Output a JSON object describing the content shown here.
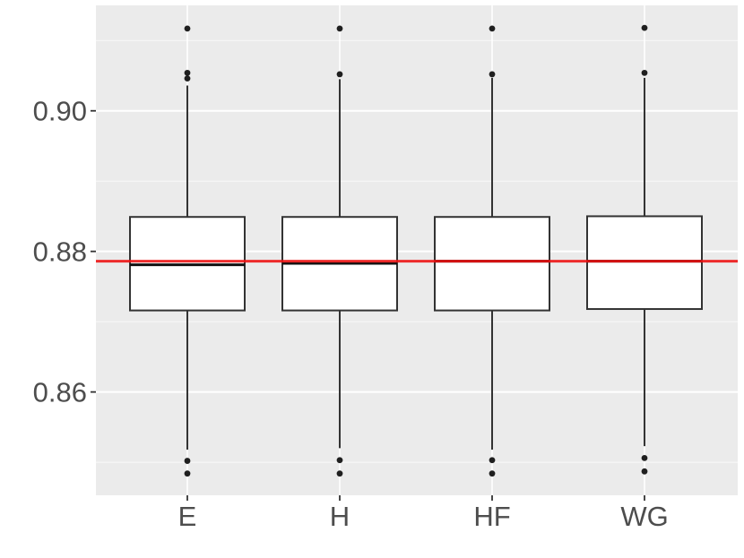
{
  "chart_data": {
    "type": "boxplot",
    "title": "",
    "xlabel": "",
    "ylabel": "",
    "categories": [
      "E",
      "H",
      "HF",
      "WG"
    ],
    "y_axis": {
      "range": [
        0.8453,
        0.915
      ],
      "major_ticks": [
        0.86,
        0.88,
        0.9
      ],
      "major_tick_labels": [
        "0.86",
        "0.88",
        "0.90"
      ],
      "minor_gridlines": [
        0.85,
        0.87,
        0.89,
        0.91
      ]
    },
    "series": [
      {
        "name": "E",
        "q1": 0.8716,
        "median": 0.8781,
        "q3": 0.8849,
        "whisker_low": 0.8518,
        "whisker_high": 0.9036,
        "outliers_high": [
          0.9117,
          0.9054,
          0.9046
        ],
        "outliers_low": [
          0.8502,
          0.8484
        ]
      },
      {
        "name": "H",
        "q1": 0.8716,
        "median": 0.8783,
        "q3": 0.8849,
        "whisker_low": 0.852,
        "whisker_high": 0.9045,
        "outliers_high": [
          0.9117,
          0.9052
        ],
        "outliers_low": [
          0.8503,
          0.8484
        ]
      },
      {
        "name": "HF",
        "q1": 0.8716,
        "median": 0.8786,
        "q3": 0.8849,
        "whisker_low": 0.8518,
        "whisker_high": 0.9047,
        "outliers_high": [
          0.9117,
          0.9052
        ],
        "outliers_low": [
          0.8503,
          0.8484
        ]
      },
      {
        "name": "WG",
        "q1": 0.8718,
        "median": 0.8786,
        "q3": 0.885,
        "whisker_low": 0.8523,
        "whisker_high": 0.9047,
        "outliers_high": [
          0.9118,
          0.9054
        ],
        "outliers_low": [
          0.8506,
          0.8487
        ]
      }
    ],
    "reference_line": {
      "value": 0.8786,
      "color": "#EE1111"
    },
    "legend": "none",
    "grid": "on",
    "style": {
      "background": "#FFFFFF",
      "panel_bg": "#EBEBEB",
      "grid_major": "#FFFFFF",
      "grid_minor": "#FFFFFF",
      "box_fill": "#FFFFFF",
      "box_stroke": "#333333",
      "median_color": "#121212",
      "outlier_color": "#1F1F1F",
      "axis_text_color": "#4D4D4D",
      "tick_color": "#333333"
    }
  }
}
